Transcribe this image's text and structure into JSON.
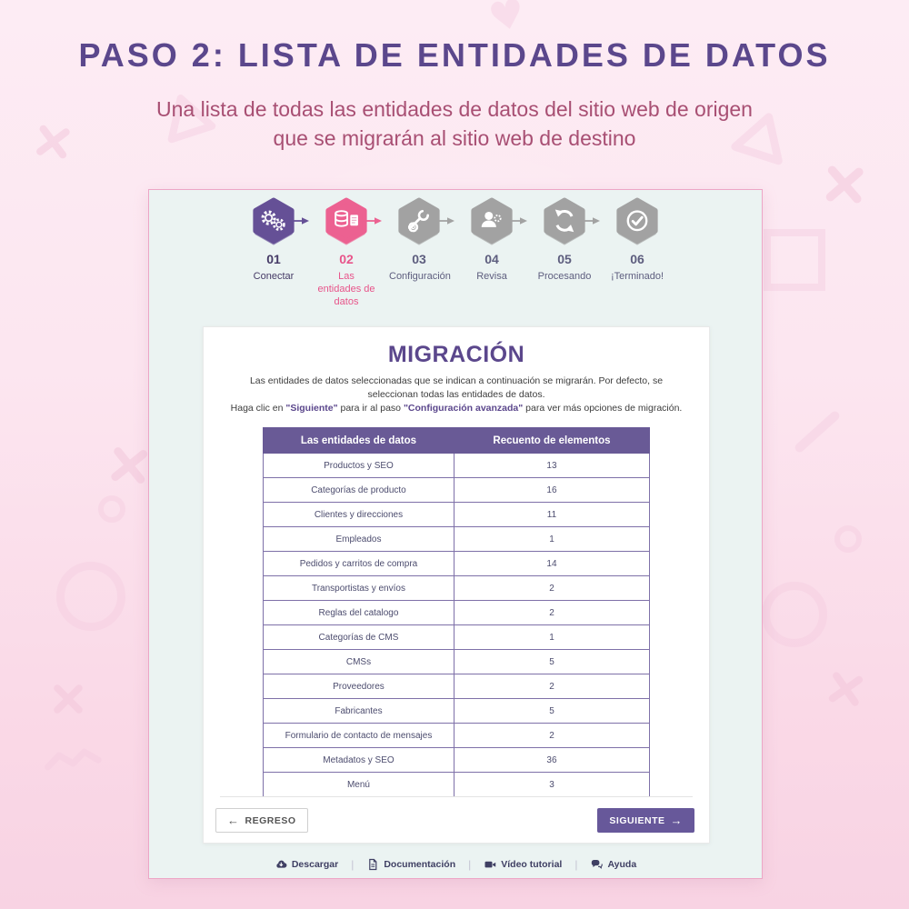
{
  "page": {
    "title": "PASO 2: LISTA DE ENTIDADES DE DATOS",
    "subtitle_line1": "Una lista de todas las entidades de datos del sitio web de origen",
    "subtitle_line2": "que se migrarán al sitio web de destino"
  },
  "colors": {
    "brand_purple": "#67589a",
    "title_purple": "#5b478c",
    "subtitle_mauve": "#a84f73",
    "accent_pink": "#e8548a",
    "hex_pink": "#ec6191",
    "hex_purple": "#655096",
    "inactive_gray": "#a2a2a2",
    "card_bg": "#ebf3f2",
    "table_header_bg": "#695a96",
    "table_border": "#7e70a8"
  },
  "stepper": {
    "steps": [
      {
        "number": "01",
        "label": "Conectar",
        "icon": "gears-icon",
        "state": "done"
      },
      {
        "number": "02",
        "label": "Las entidades de datos",
        "icon": "database-icon",
        "state": "current"
      },
      {
        "number": "03",
        "label": "Configuración",
        "icon": "tools-icon",
        "state": "upcoming"
      },
      {
        "number": "04",
        "label": "Revisa",
        "icon": "user-icon",
        "state": "upcoming"
      },
      {
        "number": "05",
        "label": "Procesando",
        "icon": "refresh-icon",
        "state": "upcoming"
      },
      {
        "number": "06",
        "label": "¡Terminado!",
        "icon": "check-icon",
        "state": "upcoming"
      }
    ]
  },
  "migration": {
    "heading": "MIGRACIÓN",
    "description_line1": "Las entidades de datos seleccionadas que se indican a continuación se migrarán. Por defecto, se seleccionan todas las entidades de datos.",
    "line2": {
      "prefix": "Haga clic en ",
      "bold1": "\"Siguiente\"",
      "mid": " para ir al paso ",
      "bold2": "\"Configuración avanzada\"",
      "suffix": " para ver más opciones de migración."
    }
  },
  "table": {
    "headers": [
      "Las entidades de datos",
      "Recuento de elementos"
    ],
    "rows": [
      {
        "entity": "Productos y SEO",
        "count": "13"
      },
      {
        "entity": "Categorías de producto",
        "count": "16"
      },
      {
        "entity": "Clientes y direcciones",
        "count": "11"
      },
      {
        "entity": "Empleados",
        "count": "1"
      },
      {
        "entity": "Pedidos y carritos de compra",
        "count": "14"
      },
      {
        "entity": "Transportistas y envíos",
        "count": "2"
      },
      {
        "entity": "Reglas del catalogo",
        "count": "2"
      },
      {
        "entity": "Categorías de CMS",
        "count": "1"
      },
      {
        "entity": "CMSs",
        "count": "5"
      },
      {
        "entity": "Proveedores",
        "count": "2"
      },
      {
        "entity": "Fabricantes",
        "count": "5"
      },
      {
        "entity": "Formulario de contacto de mensajes",
        "count": "2"
      },
      {
        "entity": "Metadatos y SEO",
        "count": "36"
      },
      {
        "entity": "Menú",
        "count": "3"
      }
    ]
  },
  "buttons": {
    "back": {
      "label": "REGRESO",
      "icon": "arrow-left-icon"
    },
    "next": {
      "label": "SIGUIENTE",
      "icon": "arrow-right-icon"
    }
  },
  "footer": {
    "links": [
      {
        "label": "Descargar",
        "icon": "download-icon"
      },
      {
        "label": "Documentación",
        "icon": "document-icon"
      },
      {
        "label": "Vídeo tutorial",
        "icon": "video-icon"
      },
      {
        "label": "Ayuda",
        "icon": "help-icon"
      }
    ]
  },
  "decorations": {
    "shapes": [
      "x-mark",
      "triangle",
      "square",
      "circle",
      "slash",
      "zigzag",
      "heart"
    ]
  }
}
